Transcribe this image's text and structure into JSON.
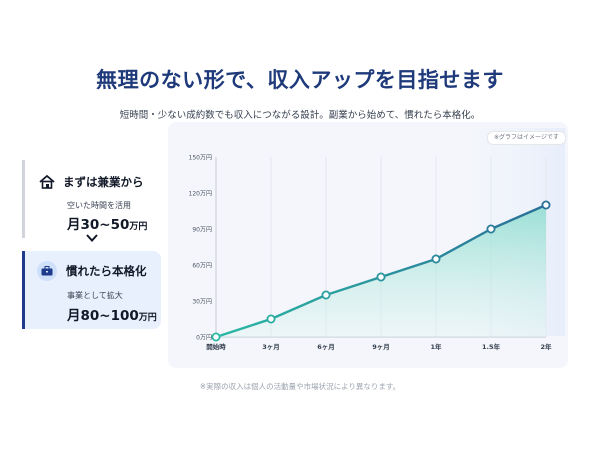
{
  "header": {
    "headline": "無理のない形で、収入アップを目指せます",
    "subtitle": "短時間・少ない成約数でも収入につながる設計。副業から始めて、慣れたら本格化。"
  },
  "steps": [
    {
      "title": "まずは兼業から",
      "icon": "house-icon",
      "description": "空いた時間を活用",
      "amount": "月30~50",
      "unit": "万円"
    },
    {
      "title": "慣れたら本格化",
      "icon": "briefcase-icon",
      "description": "事業として拡大",
      "amount": "月80~100",
      "unit": "万円"
    }
  ],
  "chart_badge": "※グラフはイメージです",
  "footnote": "※実際の収入は個人の活動量や市場状況により異なります。",
  "colors": {
    "accent": "#1e3a7a",
    "line_start": "#2bb8a4",
    "line_end": "#2a6f98",
    "highlight_card": "#e8f0fd"
  },
  "chart_data": {
    "type": "area",
    "x": [
      "開始時",
      "3ヶ月",
      "6ヶ月",
      "9ヶ月",
      "1年",
      "1.5年",
      "2年"
    ],
    "values": [
      0,
      15,
      35,
      50,
      65,
      90,
      110
    ],
    "yticks": [
      0,
      30,
      60,
      90,
      120,
      150
    ],
    "ytick_labels": [
      "0万円",
      "30万円",
      "60万円",
      "90万円",
      "120万円",
      "150万円"
    ],
    "ylim": [
      0,
      150
    ],
    "grid": "vertical",
    "title": "",
    "xlabel": "",
    "ylabel": ""
  }
}
